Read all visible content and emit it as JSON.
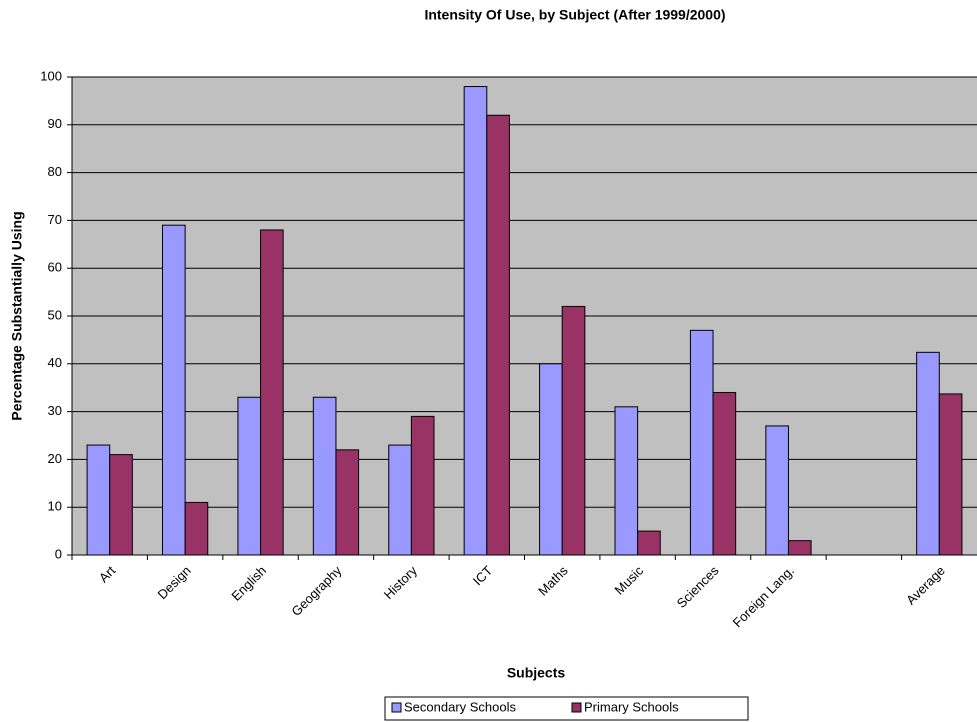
{
  "chart_data": {
    "type": "bar",
    "title": "Intensity Of Use, by Subject (After 1999/2000)",
    "x_label": "Subjects",
    "y_label": "Percentage Substantially Using",
    "categories": [
      "Art",
      "Design",
      "English",
      "Geography",
      "History",
      "ICT",
      "Maths",
      "Music",
      "Sciences",
      "Foreign Lang.",
      null,
      "Average"
    ],
    "series": [
      {
        "name": "Secondary Schools",
        "color": "#9999ff",
        "values": [
          23,
          69,
          33,
          33,
          23,
          98,
          40,
          31,
          47,
          27,
          null,
          42.4
        ]
      },
      {
        "name": "Primary Schools",
        "color": "#993366",
        "values": [
          21,
          11,
          68,
          22,
          29,
          92,
          52,
          5,
          34,
          3,
          null,
          33.7
        ]
      }
    ],
    "ylim": [
      0,
      100
    ],
    "yticks": [
      0,
      10,
      20,
      30,
      40,
      50,
      60,
      70,
      80,
      90,
      100
    ],
    "grid": true,
    "legend": "bottom",
    "background": "#c0c0c0"
  }
}
